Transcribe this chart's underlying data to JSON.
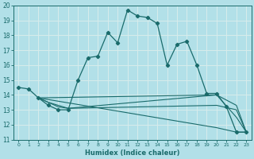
{
  "xlabel": "Humidex (Indice chaleur)",
  "background_color": "#b2e0e8",
  "grid_color": "#d8ecec",
  "line_color": "#1a6b6b",
  "xlim": [
    -0.5,
    23.5
  ],
  "ylim": [
    11,
    20
  ],
  "xticks": [
    0,
    1,
    2,
    3,
    4,
    5,
    6,
    7,
    8,
    9,
    10,
    11,
    12,
    13,
    14,
    15,
    16,
    17,
    18,
    19,
    20,
    21,
    22,
    23
  ],
  "yticks": [
    11,
    12,
    13,
    14,
    15,
    16,
    17,
    18,
    19,
    20
  ],
  "line1_x": [
    0,
    1,
    2,
    3,
    4,
    5,
    6,
    7,
    8,
    9,
    10,
    11,
    12,
    13,
    14,
    15,
    16,
    17,
    18,
    19,
    20,
    21,
    22,
    23
  ],
  "line1_y": [
    14.5,
    14.4,
    13.8,
    13.3,
    13.0,
    13.0,
    15.0,
    16.5,
    16.6,
    18.2,
    17.5,
    19.7,
    19.3,
    19.2,
    18.8,
    16.0,
    17.4,
    17.6,
    16.0,
    14.1,
    14.1,
    13.2,
    11.5,
    11.5
  ],
  "line2_x": [
    2,
    3,
    4,
    5,
    20,
    22,
    23
  ],
  "line2_y": [
    13.8,
    13.5,
    13.3,
    13.1,
    14.0,
    13.3,
    11.5
  ],
  "line3_x": [
    2,
    3,
    4,
    5,
    20,
    22,
    23
  ],
  "line3_y": [
    13.8,
    13.5,
    13.2,
    13.1,
    13.3,
    13.0,
    11.5
  ],
  "line4_x": [
    2,
    20,
    22,
    23
  ],
  "line4_y": [
    13.8,
    14.0,
    12.5,
    11.5
  ],
  "line5_x": [
    2,
    20,
    22,
    23
  ],
  "line5_y": [
    13.8,
    11.8,
    11.5,
    11.5
  ]
}
